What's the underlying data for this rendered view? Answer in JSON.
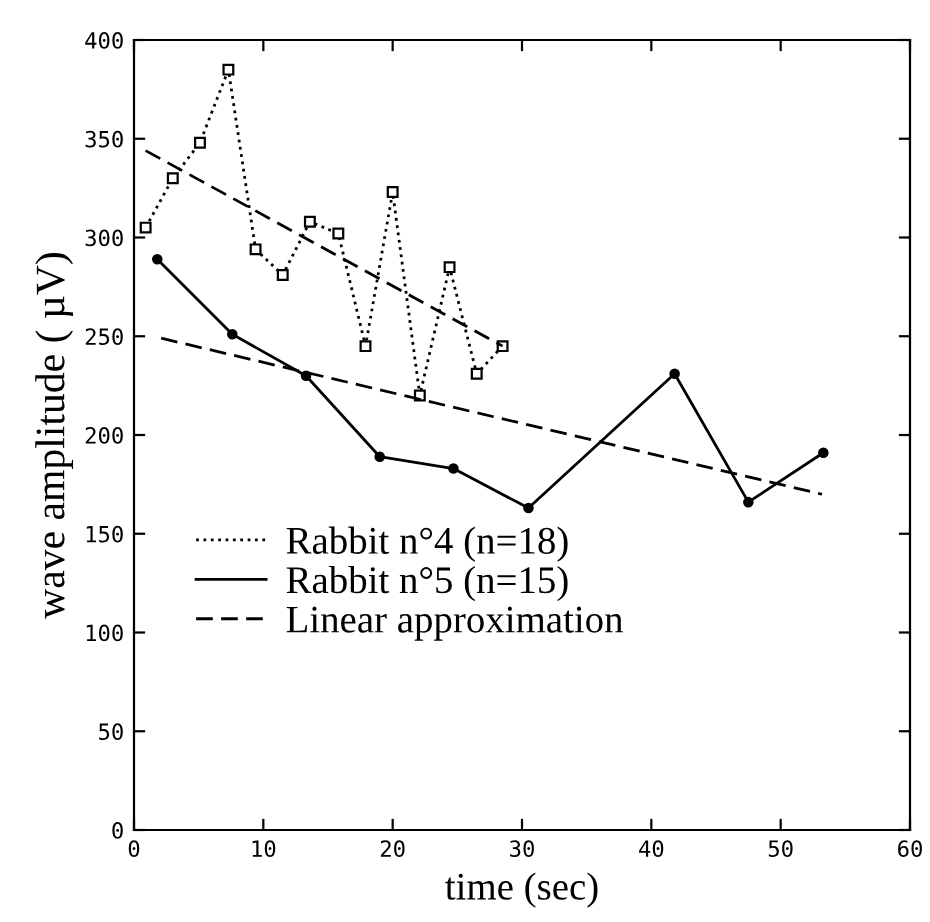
{
  "chart_data": {
    "type": "line",
    "xlabel": "time (sec)",
    "ylabel": "wave amplitude ( µV)",
    "xlim": [
      0,
      60
    ],
    "ylim": [
      0,
      400
    ],
    "xticks": [
      0,
      10,
      20,
      30,
      40,
      50,
      60
    ],
    "yticks": [
      0,
      50,
      100,
      150,
      200,
      250,
      300,
      350,
      400
    ],
    "grid": false,
    "legend": "bottom left",
    "series": [
      {
        "name": "Rabbit n°4 (n=18)",
        "color": "#000000",
        "marker": "square",
        "line_style": "dotted",
        "x": [
          0.9,
          3.0,
          5.1,
          7.3,
          9.4,
          11.5,
          13.6,
          15.8,
          17.9,
          20.0,
          22.1,
          24.4,
          26.5,
          28.5
        ],
        "values": [
          305,
          330,
          348,
          385,
          294,
          281,
          308,
          302,
          245,
          323,
          220,
          285,
          231,
          245
        ]
      },
      {
        "name": "Rabbit n°5 (n=15)",
        "color": "#000000",
        "marker": "circle",
        "line_style": "solid",
        "x": [
          1.8,
          7.6,
          13.3,
          19.0,
          24.7,
          30.5,
          41.8,
          47.5,
          53.3
        ],
        "values": [
          289,
          251,
          230,
          189,
          183,
          163,
          231,
          166,
          191
        ]
      },
      {
        "name": "Linear approximation",
        "color": "#000000",
        "marker": "none",
        "line_style": "dashed",
        "x": [
          0.9,
          28.5
        ],
        "values": [
          344,
          245
        ]
      },
      {
        "color": "#000000",
        "marker": "none",
        "line_style": "dashed",
        "x": [
          2.1,
          53.2
        ],
        "values": [
          249,
          170
        ]
      }
    ]
  }
}
